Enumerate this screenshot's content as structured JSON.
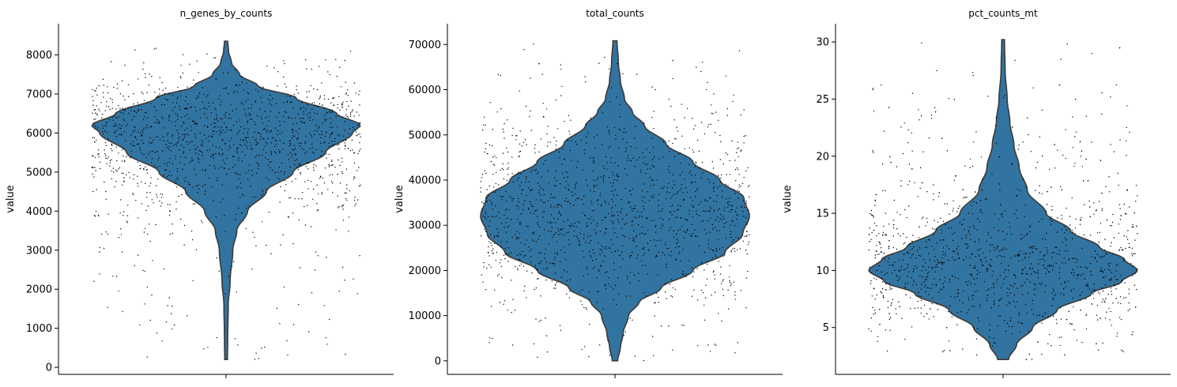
{
  "chart_data": [
    {
      "type": "violin",
      "title": "n_genes_by_counts",
      "ylabel": "value",
      "ylim": [
        -180,
        8800
      ],
      "yticks": [
        0,
        1000,
        2000,
        3000,
        4000,
        5000,
        6000,
        7000,
        8000
      ],
      "ytick_labels": [
        "0",
        "1000",
        "2000",
        "3000",
        "4000",
        "5000",
        "6000",
        "7000",
        "8000"
      ],
      "data_range": [
        200,
        8350
      ],
      "color": "#3274a1",
      "density_profile": [
        {
          "value": 200,
          "width": 0.01
        },
        {
          "value": 800,
          "width": 0.012
        },
        {
          "value": 1600,
          "width": 0.016
        },
        {
          "value": 2200,
          "width": 0.03
        },
        {
          "value": 3000,
          "width": 0.05
        },
        {
          "value": 3500,
          "width": 0.08
        },
        {
          "value": 4000,
          "width": 0.16
        },
        {
          "value": 4500,
          "width": 0.3
        },
        {
          "value": 5000,
          "width": 0.5
        },
        {
          "value": 5500,
          "width": 0.74
        },
        {
          "value": 6000,
          "width": 0.94
        },
        {
          "value": 6200,
          "width": 1.0
        },
        {
          "value": 6500,
          "width": 0.82
        },
        {
          "value": 6900,
          "width": 0.52
        },
        {
          "value": 7200,
          "width": 0.24
        },
        {
          "value": 7500,
          "width": 0.1
        },
        {
          "value": 7800,
          "width": 0.04
        },
        {
          "value": 8100,
          "width": 0.018
        },
        {
          "value": 8350,
          "width": 0.012
        }
      ]
    },
    {
      "type": "violin",
      "title": "total_counts",
      "ylabel": "value",
      "ylim": [
        -3000,
        74600
      ],
      "yticks": [
        0,
        10000,
        20000,
        30000,
        40000,
        50000,
        60000,
        70000
      ],
      "ytick_labels": [
        "0",
        "10000",
        "20000",
        "30000",
        "40000",
        "50000",
        "60000",
        "70000"
      ],
      "data_range": [
        0,
        70800
      ],
      "color": "#3274a1",
      "density_profile": [
        {
          "value": 0,
          "width": 0.02
        },
        {
          "value": 3000,
          "width": 0.04
        },
        {
          "value": 6000,
          "width": 0.06
        },
        {
          "value": 10000,
          "width": 0.1
        },
        {
          "value": 13000,
          "width": 0.18
        },
        {
          "value": 16000,
          "width": 0.34
        },
        {
          "value": 20000,
          "width": 0.58
        },
        {
          "value": 24000,
          "width": 0.82
        },
        {
          "value": 28000,
          "width": 0.95
        },
        {
          "value": 32000,
          "width": 1.0
        },
        {
          "value": 36000,
          "width": 0.96
        },
        {
          "value": 40000,
          "width": 0.78
        },
        {
          "value": 44000,
          "width": 0.58
        },
        {
          "value": 48000,
          "width": 0.38
        },
        {
          "value": 52000,
          "width": 0.22
        },
        {
          "value": 55000,
          "width": 0.13
        },
        {
          "value": 58000,
          "width": 0.07
        },
        {
          "value": 62000,
          "width": 0.04
        },
        {
          "value": 66000,
          "width": 0.025
        },
        {
          "value": 70800,
          "width": 0.015
        }
      ]
    },
    {
      "type": "violin",
      "title": "pct_counts_mt",
      "ylabel": "value",
      "ylim": [
        0.9,
        31.6
      ],
      "yticks": [
        5,
        10,
        15,
        20,
        25,
        30
      ],
      "ytick_labels": [
        "5",
        "10",
        "15",
        "20",
        "25",
        "30"
      ],
      "data_range": [
        2.2,
        30.2
      ],
      "color": "#3274a1",
      "density_profile": [
        {
          "value": 2.2,
          "width": 0.04
        },
        {
          "value": 3.5,
          "width": 0.1
        },
        {
          "value": 5.0,
          "width": 0.22
        },
        {
          "value": 6.5,
          "width": 0.4
        },
        {
          "value": 8.0,
          "width": 0.66
        },
        {
          "value": 9.0,
          "width": 0.88
        },
        {
          "value": 10.0,
          "width": 1.0
        },
        {
          "value": 11.0,
          "width": 0.9
        },
        {
          "value": 12.0,
          "width": 0.72
        },
        {
          "value": 13.5,
          "width": 0.5
        },
        {
          "value": 15.0,
          "width": 0.32
        },
        {
          "value": 17.0,
          "width": 0.18
        },
        {
          "value": 19.0,
          "width": 0.12
        },
        {
          "value": 21.0,
          "width": 0.08
        },
        {
          "value": 23.0,
          "width": 0.05
        },
        {
          "value": 25.0,
          "width": 0.03
        },
        {
          "value": 27.5,
          "width": 0.015
        },
        {
          "value": 30.2,
          "width": 0.01
        }
      ]
    }
  ]
}
